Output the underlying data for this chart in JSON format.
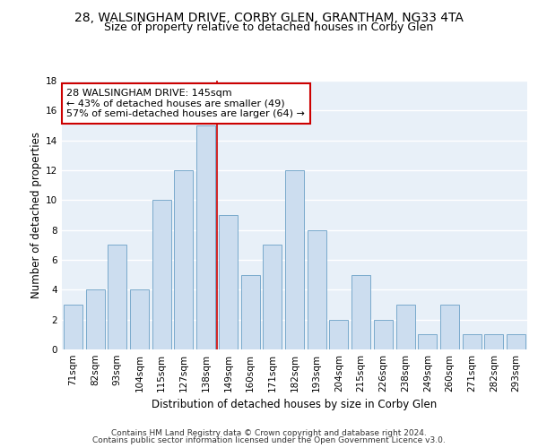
{
  "title_line1": "28, WALSINGHAM DRIVE, CORBY GLEN, GRANTHAM, NG33 4TA",
  "title_line2": "Size of property relative to detached houses in Corby Glen",
  "xlabel": "Distribution of detached houses by size in Corby Glen",
  "ylabel": "Number of detached properties",
  "categories": [
    "71sqm",
    "82sqm",
    "93sqm",
    "104sqm",
    "115sqm",
    "127sqm",
    "138sqm",
    "149sqm",
    "160sqm",
    "171sqm",
    "182sqm",
    "193sqm",
    "204sqm",
    "215sqm",
    "226sqm",
    "238sqm",
    "249sqm",
    "260sqm",
    "271sqm",
    "282sqm",
    "293sqm"
  ],
  "values": [
    3,
    4,
    7,
    4,
    10,
    12,
    15,
    9,
    5,
    7,
    12,
    8,
    2,
    5,
    2,
    3,
    1,
    3,
    1,
    1,
    1
  ],
  "bar_color": "#ccddef",
  "bar_edge_color": "#7aaacc",
  "vline_color": "#cc0000",
  "annotation_line1": "28 WALSINGHAM DRIVE: 145sqm",
  "annotation_line2": "← 43% of detached houses are smaller (49)",
  "annotation_line3": "57% of semi-detached houses are larger (64) →",
  "annotation_box_color": "#ffffff",
  "annotation_box_edge": "#cc0000",
  "ylim": [
    0,
    18
  ],
  "yticks": [
    0,
    2,
    4,
    6,
    8,
    10,
    12,
    14,
    16,
    18
  ],
  "footer_line1": "Contains HM Land Registry data © Crown copyright and database right 2024.",
  "footer_line2": "Contains public sector information licensed under the Open Government Licence v3.0.",
  "bg_color": "#e8f0f8",
  "grid_color": "#ffffff",
  "title_fontsize": 10,
  "subtitle_fontsize": 9,
  "axis_label_fontsize": 8.5,
  "tick_fontsize": 7.5,
  "annotation_fontsize": 8,
  "footer_fontsize": 6.5
}
